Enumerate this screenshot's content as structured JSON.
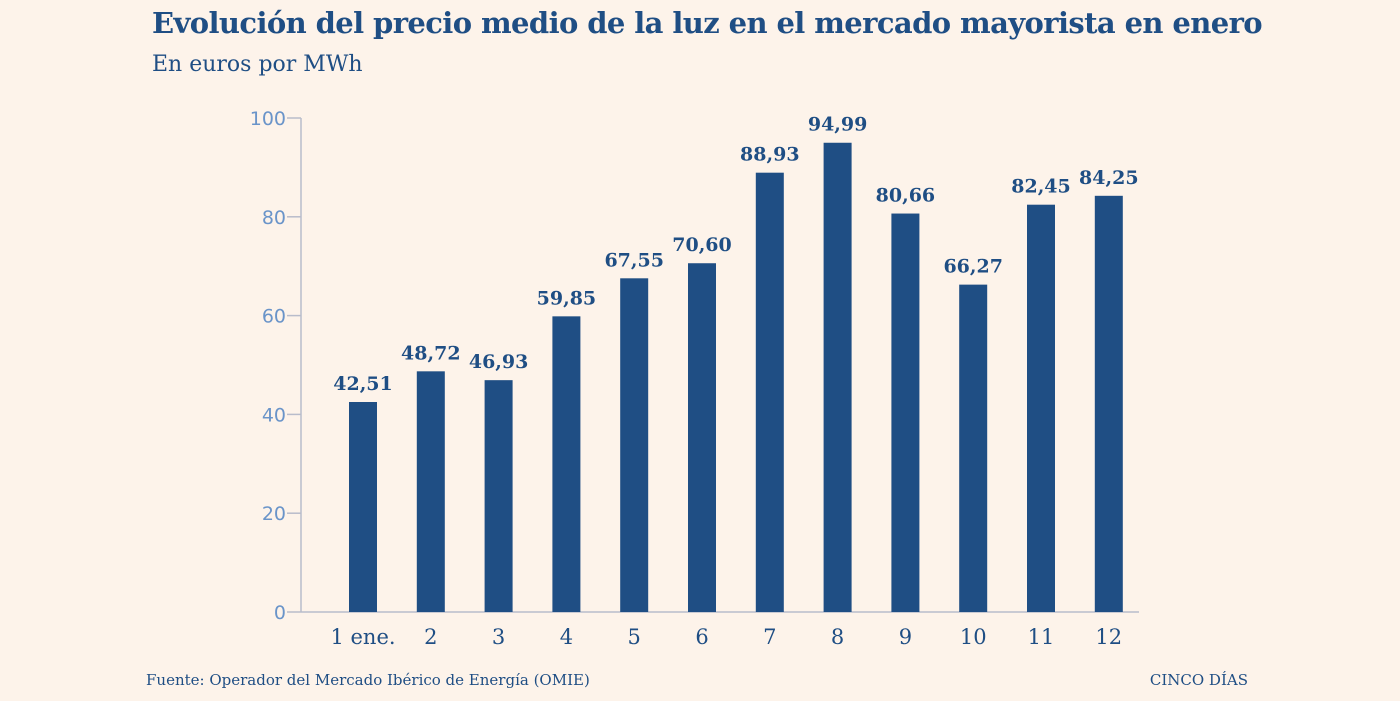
{
  "chart_data": {
    "type": "bar",
    "title": "Evolución del precio medio de la luz en el mercado mayorista en enero",
    "subtitle": "En euros por MWh",
    "xlabel": "",
    "ylabel": "",
    "categories": [
      "1 ene.",
      "2",
      "3",
      "4",
      "5",
      "6",
      "7",
      "8",
      "9",
      "10",
      "11",
      "12"
    ],
    "values": [
      42.51,
      48.72,
      46.93,
      59.85,
      67.55,
      70.6,
      88.93,
      94.99,
      80.66,
      66.27,
      82.45,
      84.25
    ],
    "value_labels": [
      "42,51",
      "48,72",
      "46,93",
      "59,85",
      "67,55",
      "70,60",
      "88,93",
      "94,99",
      "80,66",
      "66,27",
      "82,45",
      "84,25"
    ],
    "ylim": [
      0,
      100
    ],
    "yticks": [
      0,
      20,
      40,
      60,
      80,
      100
    ],
    "grid": false,
    "legend": "none"
  },
  "footer": {
    "source": "Fuente: Operador del Mercado Ibérico de Energía (OMIE)",
    "brand": "CINCO DÍAS"
  },
  "colors": {
    "background": "#fdf3ea",
    "bar": "#1f4e84",
    "text": "#1f4e84",
    "tick_label": "#6a94c9",
    "axis": "#b8bccb"
  }
}
